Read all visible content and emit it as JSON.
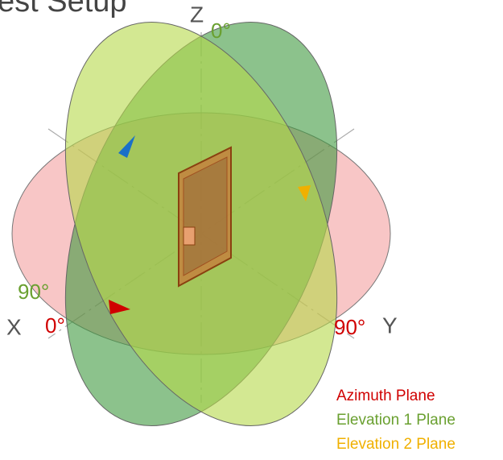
{
  "title": "Test Setup",
  "axes": {
    "z": "Z",
    "x": "X",
    "y": "Y"
  },
  "angle_labels": {
    "elevation_top": "0°",
    "elevation_side": "90°",
    "azimuth_x": "0°",
    "azimuth_y": "90°"
  },
  "legend": [
    "Azimuth Plane",
    "Elevation 1 Plane",
    "Elevation 2 Plane"
  ]
}
